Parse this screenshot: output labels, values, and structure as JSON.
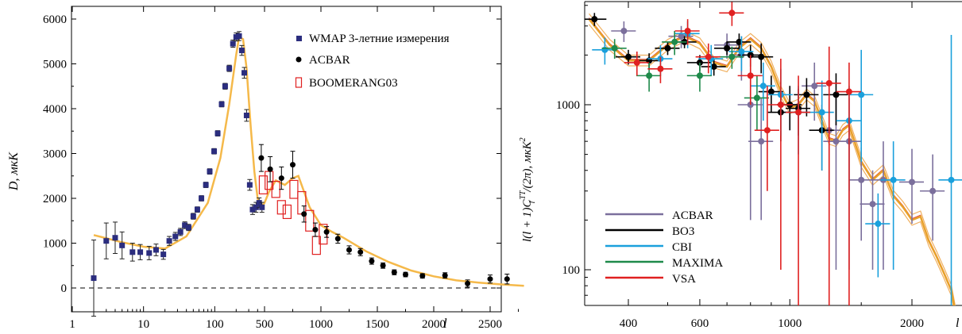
{
  "chart_data": [
    {
      "type": "scatter",
      "xlabel": "l",
      "ylabel": "D, мкК",
      "x_scale": "hybrid: log for l < 500, linear for l >= 500",
      "ylim": [
        -100,
        6000
      ],
      "x_ticks": [
        "1",
        "10",
        "100",
        "500",
        "1000",
        "1500",
        "2000",
        "2500"
      ],
      "y_ticks": [
        "0",
        "1000",
        "2000",
        "3000",
        "4000",
        "5000",
        "6000"
      ],
      "legend_position": "top-right",
      "legend": [
        "WMAP 3-летние измерения",
        "ACBAR",
        "BOOMERANG03"
      ],
      "zero_line": "dashed",
      "colors": {
        "wmap": "#2b2d7e",
        "acbar": "#000000",
        "boomerang": "#e02020",
        "model": "#f5b94a"
      },
      "model_curve": {
        "x": [
          2,
          5,
          10,
          20,
          40,
          80,
          120,
          160,
          200,
          220,
          250,
          280,
          320,
          360,
          400,
          440,
          500,
          540,
          600,
          680,
          750,
          800,
          850,
          900,
          1000,
          1100,
          1200,
          1400,
          1600,
          1800,
          2000,
          2200,
          2400,
          2600,
          2800
        ],
        "y": [
          1180,
          1020,
          920,
          880,
          1150,
          1900,
          2900,
          4100,
          5200,
          5600,
          5550,
          4900,
          3600,
          2600,
          2000,
          1780,
          1900,
          2150,
          2400,
          2300,
          2450,
          2500,
          2150,
          1800,
          1400,
          1250,
          1120,
          820,
          580,
          390,
          260,
          170,
          120,
          80,
          50
        ]
      },
      "series": [
        {
          "name": "WMAP 3-летние измерения",
          "x": [
            2,
            3,
            4,
            5,
            7,
            9,
            12,
            15,
            19,
            23,
            28,
            33,
            38,
            43,
            50,
            57,
            65,
            75,
            85,
            98,
            110,
            125,
            140,
            160,
            180,
            200,
            220,
            240,
            260,
            280,
            310,
            340,
            380,
            420,
            460
          ],
          "y": [
            220,
            1050,
            1120,
            950,
            800,
            800,
            780,
            850,
            750,
            1050,
            1150,
            1250,
            1400,
            1350,
            1600,
            1750,
            2000,
            2300,
            2600,
            3050,
            3450,
            4100,
            4500,
            4900,
            5450,
            5600,
            5620,
            5300,
            4800,
            3850,
            2300,
            1750,
            1800,
            1900,
            1800
          ],
          "err": [
            850,
            400,
            350,
            300,
            200,
            170,
            150,
            130,
            110,
            100,
            90,
            80,
            75,
            70,
            65,
            60,
            60,
            60,
            60,
            60,
            60,
            60,
            65,
            70,
            80,
            90,
            100,
            110,
            120,
            130,
            120,
            110,
            110,
            110,
            110
          ]
        },
        {
          "name": "ACBAR",
          "x": [
            450,
            550,
            650,
            750,
            850,
            950,
            1050,
            1150,
            1250,
            1350,
            1450,
            1550,
            1650,
            1750,
            1900,
            2100,
            2300,
            2500,
            2650
          ],
          "y": [
            2900,
            2650,
            2450,
            2750,
            1650,
            1300,
            1250,
            1100,
            850,
            800,
            600,
            500,
            350,
            300,
            270,
            280,
            100,
            200,
            200
          ],
          "err": [
            300,
            280,
            250,
            300,
            180,
            150,
            120,
            100,
            90,
            80,
            70,
            60,
            55,
            50,
            50,
            60,
            80,
            90,
            110
          ]
        },
        {
          "name": "BOOMERANG03",
          "x": [
            480,
            540,
            600,
            650,
            700,
            760,
            830,
            900,
            960,
            1020
          ],
          "y": [
            2300,
            2400,
            2200,
            1800,
            1700,
            2200,
            1900,
            1500,
            950,
            1200
          ],
          "half_height": [
            200,
            200,
            180,
            150,
            150,
            200,
            250,
            230,
            200,
            220
          ]
        }
      ]
    },
    {
      "type": "scatter",
      "xlabel": "l",
      "ylabel": "l(l + 1)C_l^TT/(2π), мкК²",
      "ylabel_parts": {
        "main": "l(l + 1)C",
        "sub": "l",
        "sup": "TT",
        "tail": "/(2π), мкК",
        "tail_sup": "2"
      },
      "x_scale": "log",
      "y_scale": "log",
      "xlim": [
        320,
        2600
      ],
      "ylim": [
        40,
        6000
      ],
      "x_ticks": [
        "400",
        "600",
        "1000",
        "2000",
        "l"
      ],
      "y_ticks": [
        "100",
        "1000"
      ],
      "legend_position": "bottom-left",
      "legend": [
        "ACBAR",
        "BO3",
        "CBI",
        "MAXIMA",
        "VSA"
      ],
      "colors": {
        "ACBAR": "#7b6f9c",
        "BO3": "#000000",
        "CBI": "#1aa0dc",
        "MAXIMA": "#1e8a4a",
        "VSA": "#e02020",
        "model": "#e8a12a"
      },
      "model_curve": {
        "x": [
          320,
          360,
          400,
          450,
          500,
          550,
          600,
          650,
          700,
          750,
          800,
          850,
          900,
          950,
          1000,
          1050,
          1100,
          1150,
          1200,
          1250,
          1300,
          1350,
          1400,
          1500,
          1600,
          1700,
          1800,
          1900,
          2000,
          2100,
          2200,
          2300,
          2400,
          2500,
          2600
        ],
        "y": [
          3300,
          2300,
          1850,
          1850,
          2300,
          2600,
          2350,
          1800,
          1700,
          2200,
          2500,
          2200,
          1700,
          1200,
          950,
          1000,
          1150,
          1050,
          800,
          620,
          600,
          700,
          750,
          450,
          350,
          400,
          280,
          240,
          200,
          210,
          150,
          120,
          95,
          75,
          45
        ]
      },
      "series": [
        {
          "name": "ACBAR",
          "x": [
            390,
            540,
            700,
            760,
            800,
            850,
            1000,
            1150,
            1250,
            1300,
            1400,
            1500,
            1600,
            1700,
            2000,
            2250
          ],
          "y": [
            2800,
            2600,
            2300,
            2000,
            1000,
            600,
            1000,
            1300,
            700,
            600,
            600,
            350,
            250,
            350,
            340,
            300
          ],
          "err_low": [
            400,
            400,
            400,
            600,
            800,
            400,
            300,
            500,
            400,
            500,
            500,
            200,
            150,
            250,
            150,
            150
          ],
          "err_high": [
            400,
            400,
            400,
            600,
            900,
            500,
            300,
            500,
            400,
            500,
            500,
            200,
            150,
            250,
            200,
            200
          ]
        },
        {
          "name": "BO3",
          "x": [
            330,
            400,
            450,
            500,
            550,
            600,
            650,
            700,
            750,
            800,
            850,
            900,
            950,
            1000,
            1050,
            1100,
            1200,
            1300
          ],
          "y": [
            3300,
            1950,
            1850,
            2200,
            2400,
            1800,
            1700,
            2200,
            2400,
            2000,
            1950,
            1200,
            900,
            1000,
            950,
            1150,
            700,
            1150
          ],
          "err_low": [
            300,
            200,
            200,
            200,
            200,
            200,
            200,
            200,
            300,
            300,
            400,
            300,
            300,
            300,
            300,
            300,
            300,
            400
          ],
          "err_high": [
            300,
            200,
            200,
            200,
            200,
            200,
            200,
            200,
            300,
            300,
            400,
            300,
            300,
            300,
            300,
            300,
            300,
            400
          ]
        },
        {
          "name": "CBI",
          "x": [
            350,
            480,
            560,
            640,
            760,
            860,
            950,
            1050,
            1200,
            1400,
            1500,
            1650,
            1800,
            2500
          ],
          "y": [
            2150,
            1900,
            2700,
            1900,
            2100,
            1300,
            1150,
            900,
            900,
            800,
            1150,
            190,
            350,
            350
          ],
          "err_low": [
            400,
            400,
            500,
            400,
            500,
            500,
            500,
            400,
            500,
            500,
            700,
            100,
            250,
            300
          ],
          "err_high": [
            400,
            400,
            500,
            400,
            500,
            500,
            500,
            400,
            500,
            500,
            1000,
            100,
            250,
            2300
          ]
        },
        {
          "name": "MAXIMA",
          "x": [
            370,
            450,
            520,
            600,
            720,
            830
          ],
          "y": [
            2200,
            1500,
            2400,
            1500,
            1950,
            1100
          ],
          "err_low": [
            300,
            300,
            400,
            300,
            300,
            400
          ],
          "err_high": [
            300,
            300,
            400,
            300,
            300,
            400
          ]
        },
        {
          "name": "VSA",
          "x": [
            420,
            480,
            560,
            630,
            720,
            800,
            880,
            950,
            1050,
            1250,
            1400
          ],
          "y": [
            1800,
            1650,
            2800,
            1950,
            3600,
            1500,
            700,
            1000,
            900,
            1350,
            1200
          ],
          "err_low": [
            300,
            300,
            500,
            400,
            600,
            500,
            400,
            900,
            850,
            1300,
            1150
          ],
          "err_high": [
            300,
            300,
            500,
            400,
            600,
            500,
            600,
            900,
            600,
            900,
            600
          ]
        }
      ]
    }
  ]
}
